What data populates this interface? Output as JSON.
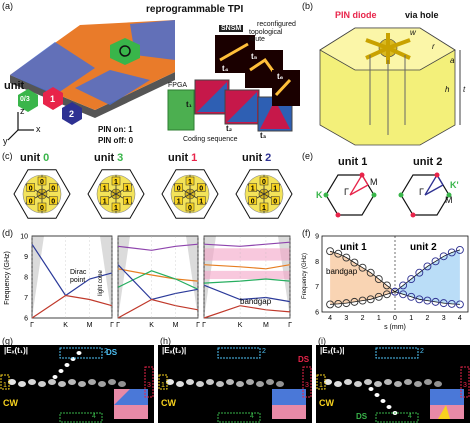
{
  "panels": {
    "a": {
      "label": "(a)",
      "title": "reprogrammable TPI",
      "snsm": "SNSM",
      "route_label_1": "reconfigured",
      "route_label_2": "topological route",
      "fpga": "FPGA",
      "coding": "Coding sequence",
      "pin_on": "PIN on: 1",
      "pin_off": "PIN off: 0",
      "unit_label": "unit",
      "unit_03": "0/3",
      "unit_1": "1",
      "unit_2": "2",
      "axis_x": "x",
      "axis_y": "y",
      "axis_z": "z",
      "t_labels": [
        "t₁",
        "t₂",
        "t₃",
        "t₄",
        "t₅",
        "t₆"
      ]
    },
    "b": {
      "label": "(b)",
      "pin_diode": "PIN diode",
      "via_hole": "via hole",
      "dim_w": "w",
      "dim_r": "r",
      "dim_a": "a",
      "dim_h": "h",
      "dim_t": "t"
    },
    "c": {
      "label": "(c)",
      "units": [
        {
          "word": "unit",
          "num": "0",
          "color": "#39b54a",
          "bits": [
            "0",
            "0",
            "0",
            "0",
            "0",
            "0"
          ]
        },
        {
          "word": "unit",
          "num": "3",
          "color": "#39b54a",
          "bits": [
            "1",
            "1",
            "1",
            "1",
            "1",
            "1"
          ]
        },
        {
          "word": "unit",
          "num": "1",
          "color": "#e8244a",
          "bits": [
            "1",
            "0",
            "1",
            "0",
            "1",
            "0"
          ]
        },
        {
          "word": "unit",
          "num": "2",
          "color": "#2e3192",
          "bits": [
            "0",
            "1",
            "0",
            "1",
            "0",
            "1"
          ]
        }
      ]
    },
    "d": {
      "label": "(d)",
      "ylabel": "Frequency (GHz)",
      "yticks": [
        "10",
        "9",
        "8",
        "7",
        "6"
      ],
      "xticks": [
        "Γ",
        "K",
        "M",
        "Γ",
        "Γ",
        "K",
        "M",
        "Γ",
        "Γ",
        "K",
        "M",
        "Γ"
      ],
      "dirac": "Dirac",
      "point": "point",
      "light_cone": "light cone",
      "bandgap": "bandgap"
    },
    "e": {
      "label": "(e)",
      "unit1": "unit 1",
      "unit2": "unit 2",
      "k": "K",
      "kprime": "K'",
      "m": "M",
      "gamma": "Γ"
    },
    "f": {
      "label": "(f)",
      "unit1": "unit 1",
      "unit2": "unit 2",
      "bandgap": "bandgap",
      "ylabel": "Frequency (GHz)",
      "xlabel": "s (mm)",
      "yticks": [
        "9",
        "8",
        "7",
        "6"
      ],
      "xticks": [
        "4",
        "3",
        "2",
        "1",
        "0",
        "1",
        "2",
        "3",
        "4"
      ]
    },
    "g": {
      "label": "(g)",
      "field": "|Eₓ(t₁)|",
      "cw": "CW",
      "ds": "DS",
      "ports": [
        "1",
        "2",
        "3",
        "4"
      ]
    },
    "h": {
      "label": "(h)",
      "field": "|Eₓ(t₂)|",
      "cw": "CW",
      "ds": "DS",
      "ports": [
        "1",
        "2",
        "3",
        "4"
      ]
    },
    "i": {
      "label": "(i)",
      "field": "|Eₓ(t₃)|",
      "cw": "CW",
      "ds": "DS",
      "ports": [
        "1",
        "2",
        "3",
        "4"
      ]
    }
  },
  "chart_data": [
    {
      "type": "line",
      "title": "",
      "xlabel": "",
      "ylabel": "Frequency (GHz)",
      "ylim": [
        6,
        10
      ],
      "subplots": [
        {
          "name": "unit 0",
          "x": [
            "Γ",
            "K",
            "M",
            "Γ"
          ],
          "series": [
            {
              "name": "",
              "color": "#2b3a9a",
              "values": [
                9.6,
                7.1,
                7.9,
                8.2
              ]
            },
            {
              "name": "",
              "color": "#c0392b",
              "values": [
                6.0,
                7.1,
                6.9,
                6.6
              ]
            }
          ]
        },
        {
          "name": "unit 3",
          "x": [
            "Γ",
            "K",
            "M",
            "Γ"
          ],
          "series": [
            {
              "name": "",
              "color": "#8e44ad",
              "values": [
                9.5,
                9.3,
                9.5,
                9.6
              ]
            },
            {
              "name": "",
              "color": "#e67e22",
              "values": [
                8.4,
                8.1,
                7.9,
                7.8
              ]
            },
            {
              "name": "",
              "color": "#27ae60",
              "values": [
                7.5,
                8.3,
                7.9,
                7.4
              ]
            },
            {
              "name": "",
              "color": "#2b3a9a",
              "values": [
                8.6,
                6.9,
                7.2,
                7.4
              ]
            },
            {
              "name": "",
              "color": "#c0392b",
              "values": [
                6.0,
                6.9,
                6.6,
                6.4
              ]
            }
          ]
        },
        {
          "name": "unit 2",
          "x": [
            "Γ",
            "K",
            "M",
            "Γ"
          ],
          "series": [
            {
              "name": "",
              "color": "#8e44ad",
              "values": [
                9.6,
                9.5,
                9.6,
                9.7
              ]
            },
            {
              "name": "",
              "color": "#e67e22",
              "values": [
                8.6,
                8.5,
                8.4,
                8.6
              ]
            },
            {
              "name": "",
              "color": "#27ae60",
              "values": [
                7.7,
                7.8,
                7.9,
                7.8
              ]
            },
            {
              "name": "",
              "color": "#2b3a9a",
              "values": [
                7.6,
                6.9,
                7.0,
                6.8
              ]
            },
            {
              "name": "",
              "color": "#c0392b",
              "values": [
                6.0,
                6.6,
                6.4,
                6.3
              ]
            }
          ]
        }
      ]
    },
    {
      "type": "scatter",
      "title": "",
      "xlabel": "s (mm)",
      "ylabel": "Frequency (GHz)",
      "xlim": [
        -4.5,
        4.5
      ],
      "ylim": [
        6,
        9
      ],
      "x": [
        -4,
        -3.5,
        -3,
        -2.5,
        -2,
        -1.5,
        -1,
        -0.5,
        0,
        0.5,
        1,
        1.5,
        2,
        2.5,
        3,
        3.5,
        4
      ],
      "series": [
        {
          "name": "upper",
          "color": "#2e3192",
          "values": [
            8.4,
            8.3,
            8.15,
            7.95,
            7.75,
            7.55,
            7.3,
            7.05,
            6.8,
            7.05,
            7.3,
            7.55,
            7.8,
            8.0,
            8.2,
            8.35,
            8.45
          ]
        },
        {
          "name": "lower",
          "color": "#2e3192",
          "values": [
            6.3,
            6.32,
            6.35,
            6.4,
            6.45,
            6.5,
            6.6,
            6.7,
            6.8,
            6.7,
            6.6,
            6.5,
            6.45,
            6.4,
            6.35,
            6.32,
            6.3
          ]
        }
      ]
    }
  ]
}
